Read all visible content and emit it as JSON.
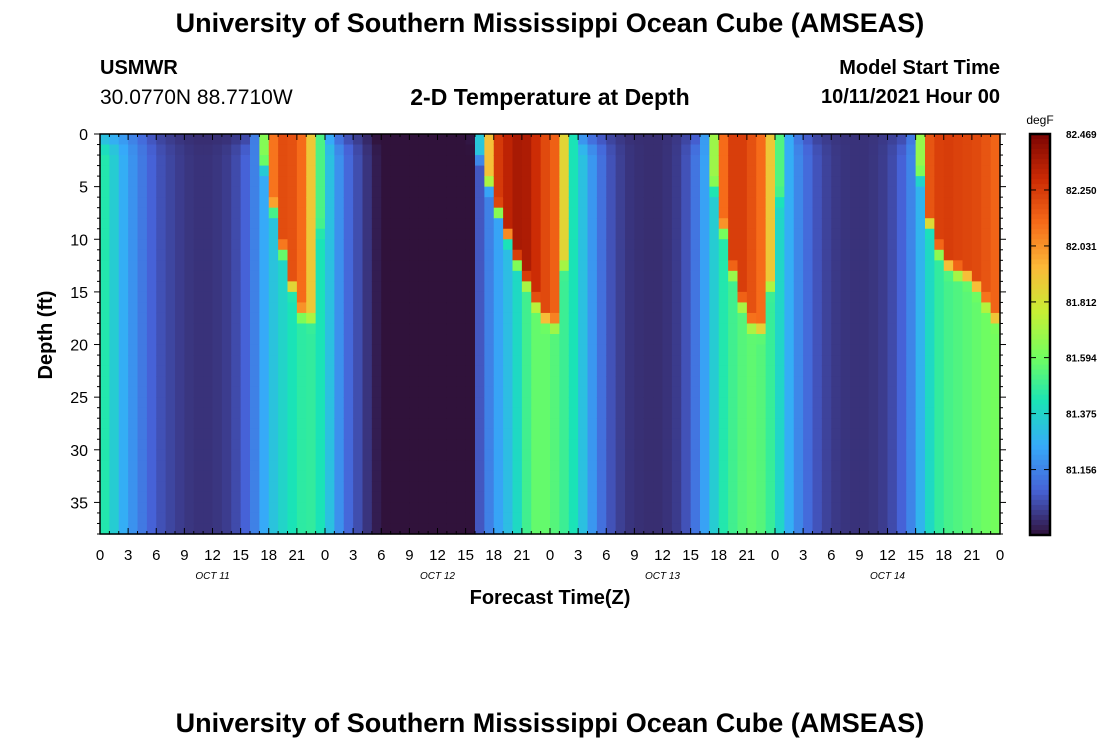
{
  "header": {
    "title": "University of Southern Mississippi Ocean Cube (AMSEAS)",
    "station": "USMWR",
    "coordinates": "30.0770N  88.7710W",
    "subtitle": "2-D Temperature at Depth",
    "model_start_label": "Model Start Time",
    "model_start_value": "10/11/2021 Hour 00"
  },
  "footer": {
    "title": "University of Southern Mississippi Ocean Cube (AMSEAS)"
  },
  "chart_data": {
    "type": "heatmap",
    "xlabel": "Forecast Time(Z)",
    "ylabel": "Depth (ft)",
    "x_tick_labels": [
      "0",
      "3",
      "6",
      "9",
      "12",
      "15",
      "18",
      "21",
      "0",
      "3",
      "6",
      "9",
      "12",
      "15",
      "18",
      "21",
      "0",
      "3",
      "6",
      "9",
      "12",
      "15",
      "18",
      "21",
      "0",
      "3",
      "6",
      "9",
      "12",
      "15",
      "18",
      "21",
      "0"
    ],
    "day_labels": [
      "OCT 11",
      "OCT 12",
      "OCT 13",
      "OCT 14"
    ],
    "xlim_hours": [
      0,
      96
    ],
    "ylim": [
      0,
      38
    ],
    "y_reversed": true,
    "y_ticks": [
      0,
      5,
      10,
      15,
      20,
      25,
      30,
      35
    ],
    "colorbar": {
      "unit": "degF",
      "ticks": [
        "82.469",
        "82.250",
        "82.031",
        "81.812",
        "81.594",
        "81.375",
        "81.156"
      ],
      "vmin": 80.9,
      "vmax": 82.469,
      "colormap": [
        "#30123b",
        "#4662d7",
        "#36aaf9",
        "#1ae4b6",
        "#72fe5e",
        "#c7ef34",
        "#fbb938",
        "#f66b19",
        "#cb2a04",
        "#7a0403"
      ]
    },
    "grid": false,
    "profile_times_hours": [
      0,
      1,
      2,
      3,
      4,
      5,
      6,
      8,
      10,
      12,
      14,
      16,
      17,
      18,
      19,
      20,
      21,
      22,
      23,
      24,
      25,
      26,
      28,
      30,
      32,
      34,
      35,
      36,
      37,
      38,
      39,
      40,
      42,
      44,
      45,
      46,
      47,
      48,
      49,
      50,
      51,
      52,
      54,
      56,
      58,
      60,
      62,
      64,
      65,
      66,
      67,
      68,
      69,
      70,
      71,
      72,
      73,
      74,
      76,
      78,
      80,
      82,
      84,
      86,
      87,
      88,
      89,
      90,
      91,
      92,
      93,
      94,
      95,
      96
    ],
    "surface_temp_degF": [
      81.32,
      81.27,
      81.23,
      81.18,
      81.12,
      81.07,
      81.02,
      80.98,
      80.96,
      80.96,
      80.97,
      81.03,
      81.25,
      82.02,
      82.18,
      82.22,
      82.16,
      82.08,
      81.72,
      81.32,
      81.16,
      81.05,
      80.97,
      80.88,
      80.72,
      80.55,
      80.48,
      80.48,
      80.52,
      80.62,
      80.78,
      81.04,
      82.22,
      82.36,
      82.38,
      82.34,
      82.24,
      82.18,
      82.12,
      81.6,
      81.24,
      81.12,
      81.02,
      80.97,
      80.96,
      80.96,
      80.99,
      81.08,
      81.35,
      82.02,
      82.22,
      82.26,
      82.22,
      82.16,
      82.08,
      81.72,
      81.34,
      81.16,
      81.02,
      80.98,
      80.97,
      80.97,
      80.99,
      81.04,
      81.2,
      82.14,
      82.22,
      82.25,
      82.24,
      82.22,
      82.22,
      82.2,
      82.16,
      82.12
    ],
    "bottom_temp_degF": [
      81.48,
      81.4,
      81.3,
      81.22,
      81.16,
      81.1,
      81.05,
      81.0,
      80.97,
      80.97,
      81.0,
      81.1,
      81.2,
      81.3,
      81.35,
      81.4,
      81.44,
      81.48,
      81.46,
      81.38,
      81.25,
      81.12,
      81.0,
      80.9,
      80.74,
      80.56,
      80.5,
      80.5,
      80.55,
      80.65,
      80.8,
      81.0,
      81.2,
      81.34,
      81.44,
      81.56,
      81.58,
      81.56,
      81.52,
      81.46,
      81.38,
      81.25,
      81.06,
      80.98,
      80.96,
      80.96,
      81.0,
      81.16,
      81.3,
      81.4,
      81.48,
      81.52,
      81.56,
      81.56,
      81.52,
      81.44,
      81.32,
      81.2,
      81.06,
      80.99,
      80.97,
      80.97,
      81.0,
      81.1,
      81.22,
      81.34,
      81.44,
      81.5,
      81.52,
      81.54,
      81.56,
      81.58,
      81.6,
      81.6
    ],
    "mixed_layer_depth_ft": [
      0,
      0,
      0,
      0,
      0,
      0,
      0,
      0,
      0,
      0,
      0,
      0,
      0,
      4,
      8,
      12,
      15,
      17,
      16,
      0,
      0,
      0,
      0,
      0,
      0,
      0,
      0,
      0,
      0,
      0,
      0,
      0,
      5,
      10,
      12,
      14,
      16,
      17,
      17,
      6,
      0,
      0,
      0,
      0,
      0,
      0,
      0,
      0,
      2,
      6,
      10,
      14,
      16,
      18,
      17,
      10,
      0,
      0,
      0,
      0,
      0,
      0,
      0,
      0,
      0,
      6,
      9,
      11,
      12,
      12,
      13,
      14,
      16,
      17
    ]
  }
}
